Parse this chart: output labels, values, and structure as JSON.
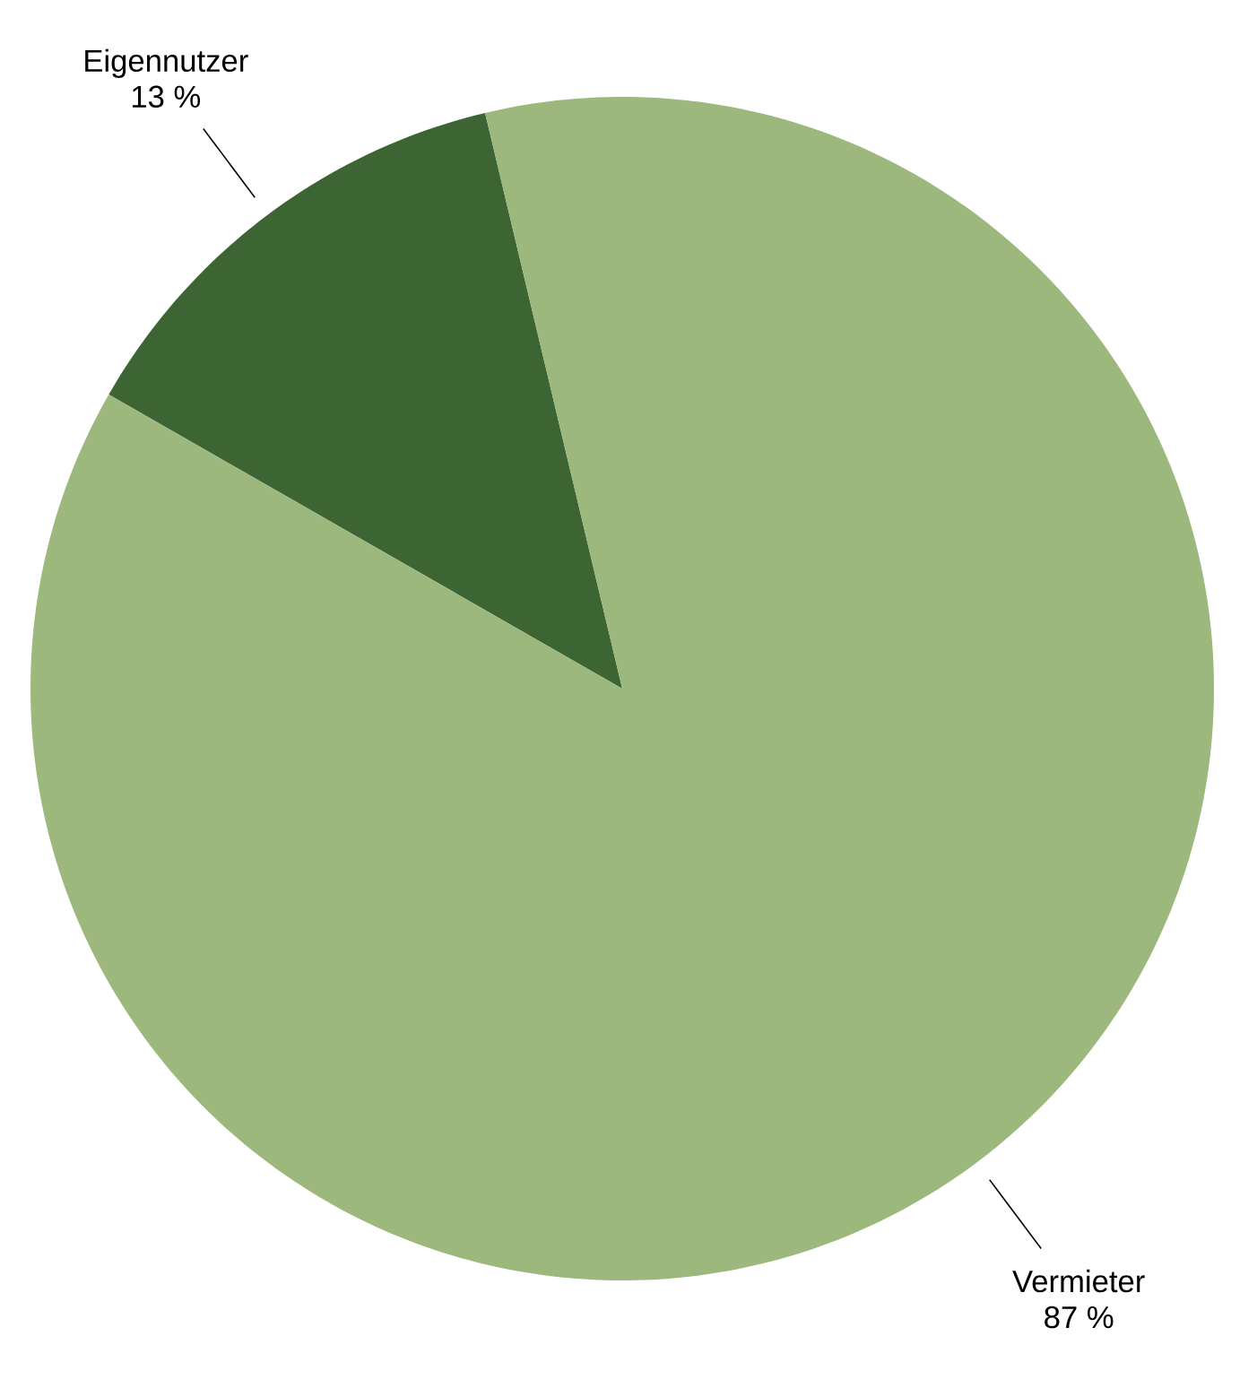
{
  "chart_data": {
    "type": "pie",
    "categories": [
      "Eigennutzer",
      "Vermieter"
    ],
    "values": [
      13,
      87
    ],
    "colors": [
      "#3d6534",
      "#9cb87d"
    ],
    "value_labels": [
      "13 %",
      "87 %"
    ]
  }
}
